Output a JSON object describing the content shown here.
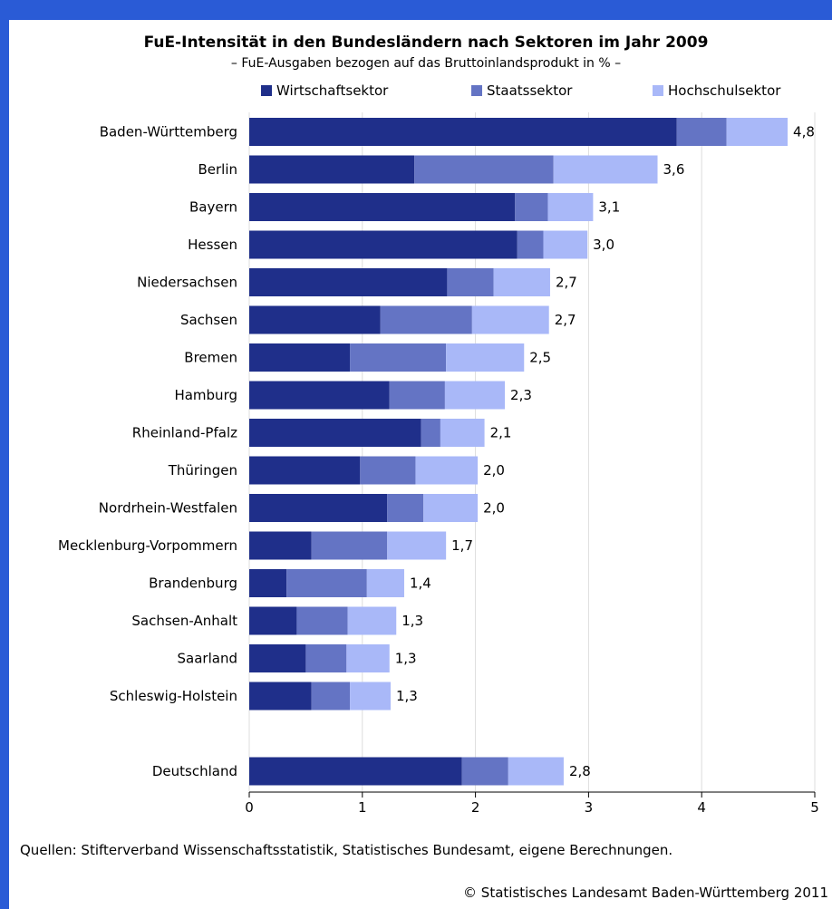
{
  "chart_data": {
    "type": "bar",
    "orientation": "horizontal",
    "stacked": true,
    "title": "FuE-Intensität in den Bundesländern nach Sektoren im Jahr 2009",
    "subtitle": "– FuE-Ausgaben bezogen auf das Bruttoinlandsprodukt in % –",
    "categories": [
      "Baden-Württemberg",
      "Berlin",
      "Bayern",
      "Hessen",
      "Niedersachsen",
      "Sachsen",
      "Bremen",
      "Hamburg",
      "Rheinland-Pfalz",
      "Thüringen",
      "Nordrhein-Westfalen",
      "Mecklenburg-Vorpommern",
      "Brandenburg",
      "Sachsen-Anhalt",
      "Saarland",
      "Schleswig-Holstein",
      "",
      "Deutschland"
    ],
    "series": [
      {
        "name": "Wirtschaftsektor",
        "color": "#1f2f8a",
        "values": [
          3.78,
          1.46,
          2.35,
          2.37,
          1.75,
          1.16,
          0.89,
          1.24,
          1.52,
          0.98,
          1.22,
          0.55,
          0.33,
          0.42,
          0.5,
          0.55,
          null,
          1.88
        ]
      },
      {
        "name": "Staatssektor",
        "color": "#6474c4",
        "values": [
          0.44,
          1.23,
          0.29,
          0.23,
          0.41,
          0.81,
          0.85,
          0.49,
          0.17,
          0.49,
          0.32,
          0.67,
          0.71,
          0.45,
          0.36,
          0.34,
          null,
          0.41
        ]
      },
      {
        "name": "Hochschulsektor",
        "color": "#a9b8f8",
        "values": [
          0.54,
          0.92,
          0.4,
          0.39,
          0.5,
          0.68,
          0.69,
          0.53,
          0.39,
          0.55,
          0.48,
          0.52,
          0.33,
          0.43,
          0.38,
          0.36,
          null,
          0.49
        ]
      }
    ],
    "totals": [
      "4,8",
      "3,6",
      "3,1",
      "3,0",
      "2,7",
      "2,7",
      "2,5",
      "2,3",
      "2,1",
      "2,0",
      "2,0",
      "1,7",
      "1,4",
      "1,3",
      "1,3",
      "1,3",
      "",
      "2,8"
    ],
    "xlim": [
      0,
      5
    ],
    "xticks": [
      "0",
      "1",
      "2",
      "3",
      "4",
      "5"
    ],
    "grid": true,
    "legend_position": "top"
  },
  "footer": {
    "source": "Quellen: Stifterverband Wissenschaftsstatistik, Statistisches Bundesamt, eigene Berechnungen.",
    "copyright": "© Statistisches Landesamt Baden-Württemberg 2011"
  },
  "colors": {
    "background_frame": "#2a5bd6",
    "panel": "#ffffff",
    "grid": "#dddddd"
  }
}
